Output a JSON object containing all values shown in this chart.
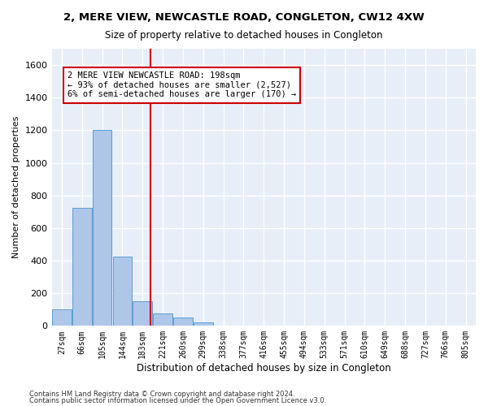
{
  "title": "2, MERE VIEW, NEWCASTLE ROAD, CONGLETON, CW12 4XW",
  "subtitle": "Size of property relative to detached houses in Congleton",
  "xlabel": "Distribution of detached houses by size in Congleton",
  "ylabel": "Number of detached properties",
  "footnote1": "Contains HM Land Registry data © Crown copyright and database right 2024.",
  "footnote2": "Contains public sector information licensed under the Open Government Licence v3.0.",
  "bar_labels": [
    "27sqm",
    "66sqm",
    "105sqm",
    "144sqm",
    "183sqm",
    "221sqm",
    "260sqm",
    "299sqm",
    "338sqm",
    "377sqm",
    "416sqm",
    "455sqm",
    "494sqm",
    "533sqm",
    "571sqm",
    "610sqm",
    "649sqm",
    "688sqm",
    "727sqm",
    "766sqm",
    "805sqm"
  ],
  "bar_values": [
    100,
    725,
    1200,
    425,
    150,
    75,
    50,
    20,
    0,
    0,
    0,
    0,
    0,
    0,
    0,
    0,
    0,
    0,
    0,
    0,
    0
  ],
  "bar_color": "#aec6e8",
  "bar_edge_color": "#5a9fd4",
  "background_color": "#e8eef7",
  "grid_color": "#ffffff",
  "ylim": [
    0,
    1700
  ],
  "yticks": [
    0,
    200,
    400,
    600,
    800,
    1000,
    1200,
    1400,
    1600
  ],
  "vline_color": "#cc0000",
  "annotation_text": "2 MERE VIEW NEWCASTLE ROAD: 198sqm\n← 93% of detached houses are smaller (2,527)\n6% of semi-detached houses are larger (170) →",
  "property_size_sqm": 198
}
